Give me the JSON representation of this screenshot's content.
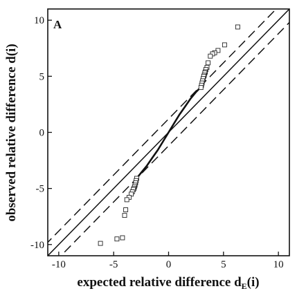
{
  "chart_data": {
    "type": "scatter",
    "panel_label": "A",
    "xlabel": "expected relative difference d",
    "xlabel_sub": "E",
    "xlabel_tail": "(i)",
    "ylabel": "observed relative difference d(i)",
    "xlim": [
      -11,
      11
    ],
    "ylim": [
      -11,
      11
    ],
    "xticks": [
      -10,
      -5,
      0,
      5,
      10
    ],
    "yticks": [
      -10,
      -5,
      0,
      5,
      10
    ],
    "grid": false,
    "reference_lines": [
      {
        "name": "identity",
        "style": "solid",
        "offset": 0
      },
      {
        "name": "upper band",
        "style": "dashed",
        "offset": 1.2
      },
      {
        "name": "lower band",
        "style": "dashed",
        "offset": -1.2
      }
    ],
    "points": [
      [
        6.3,
        9.4
      ],
      [
        5.1,
        7.8
      ],
      [
        4.5,
        7.3
      ],
      [
        4.2,
        7.1
      ],
      [
        4.0,
        7.0
      ],
      [
        3.8,
        6.8
      ],
      [
        3.6,
        6.2
      ],
      [
        3.5,
        5.8
      ],
      [
        3.4,
        5.6
      ],
      [
        3.35,
        5.4
      ],
      [
        3.3,
        5.3
      ],
      [
        3.25,
        5.1
      ],
      [
        3.2,
        5.0
      ],
      [
        3.15,
        4.8
      ],
      [
        3.1,
        4.6
      ],
      [
        3.05,
        4.4
      ],
      [
        3.0,
        4.2
      ],
      [
        2.95,
        4.0
      ],
      [
        -2.9,
        -4.1
      ],
      [
        -2.95,
        -4.3
      ],
      [
        -3.0,
        -4.5
      ],
      [
        -3.05,
        -4.7
      ],
      [
        -3.1,
        -4.85
      ],
      [
        -3.15,
        -5.0
      ],
      [
        -3.2,
        -5.1
      ],
      [
        -3.3,
        -5.3
      ],
      [
        -3.4,
        -5.5
      ],
      [
        -3.6,
        -5.8
      ],
      [
        -3.8,
        -6.0
      ],
      [
        -3.9,
        -6.9
      ],
      [
        -4.0,
        -7.4
      ],
      [
        -4.2,
        -9.4
      ],
      [
        -4.7,
        -9.5
      ],
      [
        -6.2,
        -9.9
      ]
    ],
    "smooth_curve_x": [
      -2.9,
      -2.5,
      -2.0,
      -1.5,
      -1.0,
      -0.5,
      0,
      0.5,
      1.0,
      1.5,
      2.0,
      2.5,
      2.9
    ],
    "smooth_curve_y": [
      -4.1,
      -3.6,
      -3.0,
      -2.3,
      -1.6,
      -0.8,
      0,
      0.8,
      1.6,
      2.3,
      3.0,
      3.6,
      4.0
    ]
  }
}
